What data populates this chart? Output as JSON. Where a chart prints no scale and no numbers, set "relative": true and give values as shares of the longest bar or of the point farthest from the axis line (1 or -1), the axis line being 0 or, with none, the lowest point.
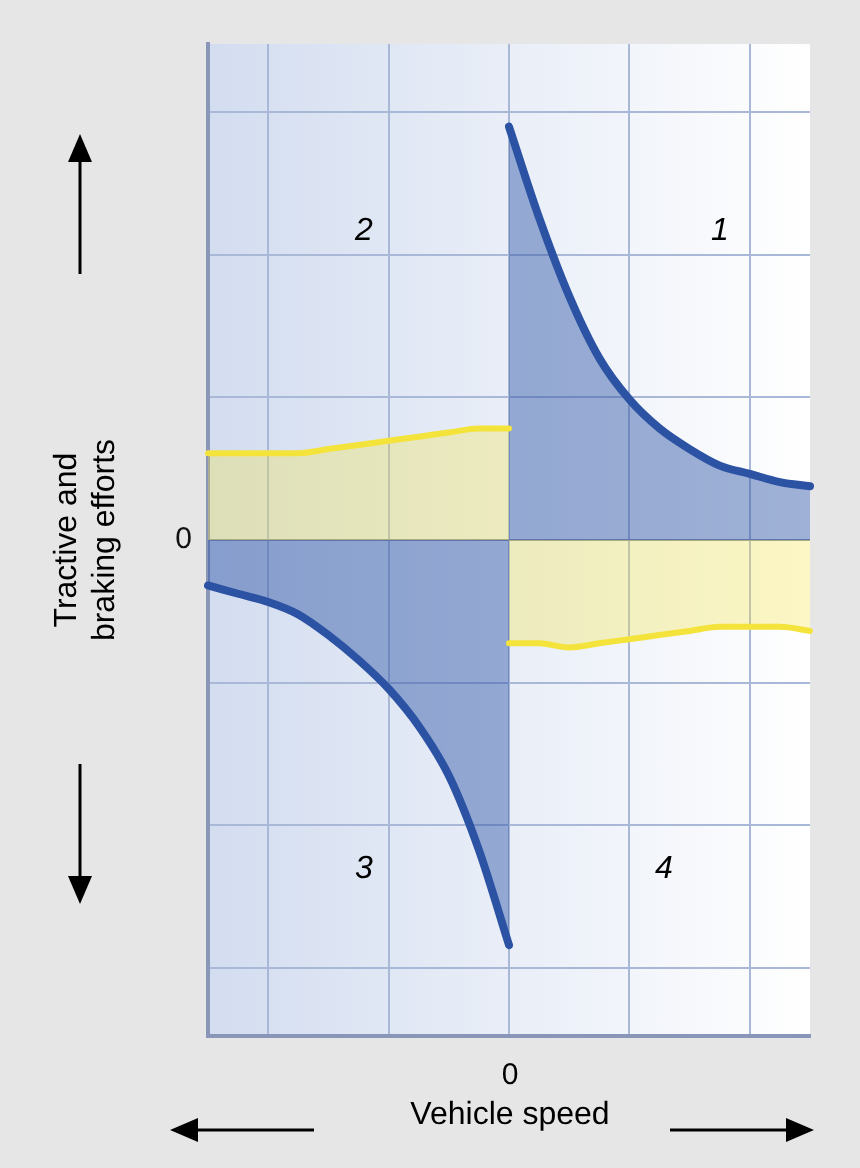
{
  "chart_data": {
    "type": "area",
    "relative": true,
    "xlabel": "Vehicle speed",
    "ylabel": "Tractive and braking efforts",
    "categories": [
      null,
      null,
      null,
      null,
      null,
      null,
      null,
      null,
      null,
      null,
      null,
      null,
      null,
      null,
      null,
      null,
      null,
      null,
      null,
      null,
      null
    ],
    "series": [
      {
        "color": "#f4e33a",
        "values": [
          0.21,
          0.21,
          0.21,
          0.21,
          0.22,
          0.23,
          0.24,
          0.25,
          0.26,
          0.27,
          0.27,
          null,
          null,
          null,
          null,
          null,
          null,
          null,
          null,
          null,
          null
        ]
      },
      {
        "color": "#f4e33a",
        "values": [
          null,
          null,
          null,
          null,
          null,
          null,
          null,
          null,
          null,
          null,
          -0.25,
          -0.25,
          -0.26,
          -0.25,
          -0.24,
          -0.23,
          -0.22,
          -0.21,
          -0.21,
          -0.21,
          -0.22
        ]
      },
      {
        "color": "#2b52a3",
        "values": [
          null,
          null,
          null,
          null,
          null,
          null,
          null,
          null,
          null,
          null,
          1.0,
          0.78,
          0.59,
          0.44,
          0.34,
          0.27,
          0.22,
          0.18,
          0.16,
          0.14,
          0.13
        ]
      },
      {
        "color": "#2b52a3",
        "values": [
          -0.11,
          -0.13,
          -0.15,
          -0.18,
          -0.23,
          -0.29,
          -0.36,
          -0.45,
          -0.57,
          -0.75,
          -0.98,
          null,
          null,
          null,
          null,
          null,
          null,
          null,
          null,
          null,
          null
        ]
      }
    ],
    "ref_lines": [
      {
        "axis": "y",
        "value": 0,
        "label": "0"
      }
    ],
    "annotations": [
      "1",
      "2",
      "3",
      "4",
      "0"
    ],
    "grid": true,
    "legend": false
  }
}
